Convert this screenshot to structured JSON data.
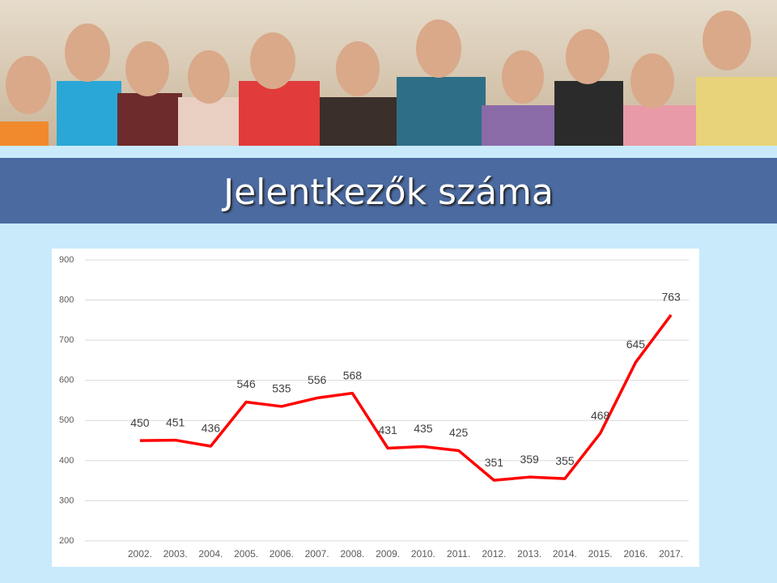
{
  "chart_data": {
    "type": "line",
    "title": "Jelentkezők száma",
    "categories": [
      "2002.",
      "2003.",
      "2004.",
      "2005.",
      "2006.",
      "2007.",
      "2008.",
      "2009.",
      "2010.",
      "2011.",
      "2012.",
      "2013.",
      "2014.",
      "2015.",
      "2016.",
      "2017."
    ],
    "series": [
      {
        "color": "#ff0000",
        "values": [
          450,
          451,
          436,
          546,
          535,
          556,
          568,
          431,
          435,
          425,
          351,
          359,
          355,
          468,
          645,
          763
        ]
      }
    ],
    "ylim": [
      200,
      900
    ],
    "yticks": [
      200,
      300,
      400,
      500,
      600,
      700,
      800,
      900
    ],
    "grid": true,
    "data_labels": true
  }
}
